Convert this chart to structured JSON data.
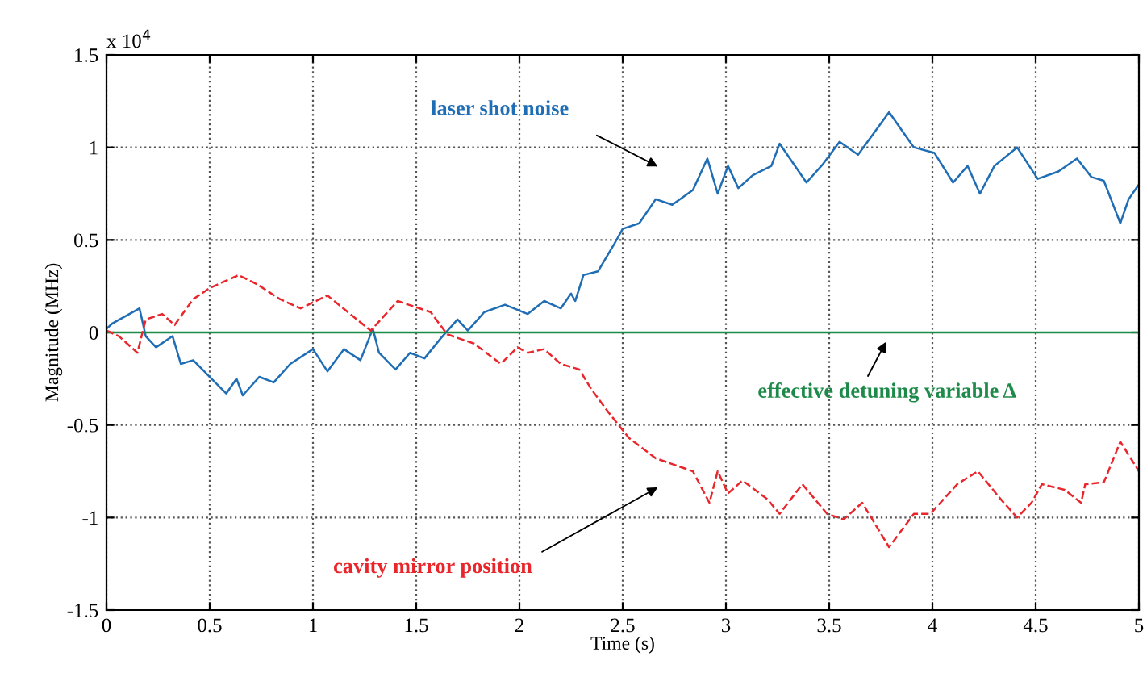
{
  "chart_data": {
    "type": "line",
    "xlabel": "Time (s)",
    "ylabel": "Magnitude (MHz)",
    "xlim": [
      0,
      5
    ],
    "ylim": [
      -1.5,
      1.5
    ],
    "xticks": [
      0,
      0.5,
      1,
      1.5,
      2,
      2.5,
      3,
      3.5,
      4,
      4.5,
      5
    ],
    "yticks": [
      -1.5,
      -1,
      -0.5,
      0,
      0.5,
      1,
      1.5
    ],
    "grid": true,
    "legend": false,
    "series": [
      {
        "color": "#1f6db5",
        "line_style": "solid",
        "x": [
          0,
          0.03,
          0.16,
          0.19,
          0.24,
          0.32,
          0.36,
          0.42,
          0.5,
          0.58,
          0.63,
          0.66,
          0.74,
          0.81,
          0.89,
          1.0,
          1.07,
          1.15,
          1.23,
          1.29,
          1.32,
          1.4,
          1.47,
          1.54,
          1.62,
          1.7,
          1.75,
          1.83,
          1.93,
          2.04,
          2.12,
          2.2,
          2.25,
          2.27,
          2.31,
          2.38,
          2.46,
          2.5,
          2.58,
          2.66,
          2.74,
          2.84,
          2.91,
          2.96,
          3.01,
          3.06,
          3.13,
          3.22,
          3.26,
          3.39,
          3.47,
          3.55,
          3.64,
          3.79,
          3.91,
          4.01,
          4.1,
          4.17,
          4.23,
          4.3,
          4.41,
          4.51,
          4.61,
          4.7,
          4.77,
          4.83,
          4.91,
          4.95,
          5.0
        ],
        "values": [
          0.02,
          0.05,
          0.13,
          -0.02,
          -0.08,
          -0.02,
          -0.17,
          -0.15,
          -0.24,
          -0.33,
          -0.25,
          -0.34,
          -0.24,
          -0.27,
          -0.17,
          -0.09,
          -0.21,
          -0.09,
          -0.15,
          0.02,
          -0.11,
          -0.2,
          -0.11,
          -0.14,
          -0.03,
          0.07,
          0.01,
          0.11,
          0.15,
          0.1,
          0.17,
          0.13,
          0.21,
          0.17,
          0.31,
          0.33,
          0.48,
          0.56,
          0.59,
          0.72,
          0.69,
          0.77,
          0.94,
          0.75,
          0.9,
          0.78,
          0.85,
          0.9,
          1.02,
          0.81,
          0.91,
          1.03,
          0.96,
          1.19,
          1.0,
          0.97,
          0.81,
          0.9,
          0.75,
          0.9,
          1.0,
          0.83,
          0.87,
          0.94,
          0.84,
          0.82,
          0.59,
          0.72,
          0.8
        ]
      },
      {
        "color": "#1e8a4a",
        "line_style": "solid",
        "x": [
          0,
          5
        ],
        "values": [
          0,
          0
        ]
      },
      {
        "color": "#e8262b",
        "line_style": "dashed",
        "x": [
          0,
          0.06,
          0.15,
          0.19,
          0.27,
          0.33,
          0.42,
          0.5,
          0.64,
          0.73,
          0.84,
          0.94,
          1.07,
          1.18,
          1.28,
          1.41,
          1.49,
          1.57,
          1.65,
          1.78,
          1.91,
          1.99,
          2.04,
          2.12,
          2.2,
          2.29,
          2.35,
          2.43,
          2.53,
          2.66,
          2.84,
          2.92,
          2.96,
          3.01,
          3.08,
          3.2,
          3.26,
          3.37,
          3.49,
          3.57,
          3.66,
          3.79,
          3.91,
          3.99,
          4.12,
          4.22,
          4.33,
          4.41,
          4.48,
          4.53,
          4.64,
          4.72,
          4.74,
          4.83,
          4.91,
          5.0
        ],
        "values": [
          0.01,
          -0.02,
          -0.11,
          0.07,
          0.1,
          0.04,
          0.18,
          0.24,
          0.31,
          0.26,
          0.18,
          0.13,
          0.2,
          0.1,
          0.01,
          0.17,
          0.14,
          0.11,
          -0.01,
          -0.06,
          -0.17,
          -0.08,
          -0.11,
          -0.09,
          -0.17,
          -0.2,
          -0.31,
          -0.43,
          -0.57,
          -0.68,
          -0.75,
          -0.92,
          -0.75,
          -0.87,
          -0.8,
          -0.9,
          -0.98,
          -0.82,
          -0.98,
          -1.01,
          -0.92,
          -1.16,
          -0.98,
          -0.98,
          -0.82,
          -0.75,
          -0.9,
          -1.0,
          -0.92,
          -0.82,
          -0.85,
          -0.92,
          -0.82,
          -0.81,
          -0.59,
          -0.75
        ]
      }
    ],
    "annotations": [
      "laser shot noise",
      "effective detuning variable Δ",
      "cavity mirror position",
      "x 10$^{4}$"
    ]
  }
}
